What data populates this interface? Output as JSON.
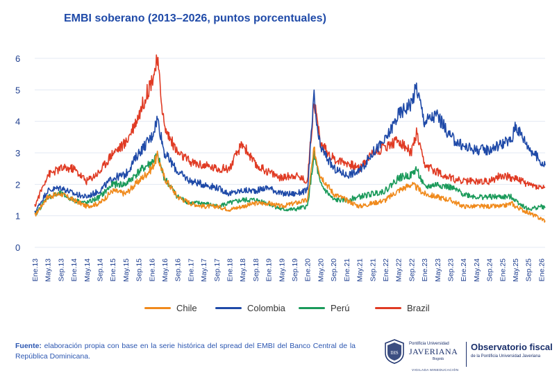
{
  "title": "EMBI soberano (2013–2026, puntos porcentuales)",
  "chart_data": {
    "type": "line",
    "title": "EMBI soberano (2013–2026, puntos porcentuales)",
    "xlabel": "",
    "ylabel": "",
    "ylim": [
      0,
      6
    ],
    "yticks": [
      0,
      1,
      2,
      3,
      4,
      5,
      6
    ],
    "grid": "horizontal",
    "legend_position": "bottom",
    "x_start": 2013.0,
    "x_end": 2026.1,
    "xtick_labels": [
      "Ene.13",
      "May.13",
      "Sep.13",
      "Ene.14",
      "May.14",
      "Sep.14",
      "Ene.15",
      "May.15",
      "Sep.15",
      "Ene.16",
      "May.16",
      "Sep.16",
      "Ene.17",
      "May.17",
      "Sep.17",
      "Ene.18",
      "May.18",
      "Sep.18",
      "Ene.19",
      "May.19",
      "Sep.19",
      "Ene.20",
      "May.20",
      "Sep.20",
      "Ene.21",
      "May.21",
      "Sep.21",
      "Ene.22",
      "May.22",
      "Sep.22",
      "Ene.23",
      "May.23",
      "Sep.23",
      "Ene.24",
      "May.24",
      "Sep.24",
      "Ene.25",
      "May.25",
      "Sep.25",
      "Ene.26"
    ],
    "x": [
      2013.0,
      2013.33,
      2013.67,
      2014.0,
      2014.33,
      2014.67,
      2015.0,
      2015.33,
      2015.67,
      2016.0,
      2016.15,
      2016.33,
      2016.67,
      2017.0,
      2017.33,
      2017.67,
      2018.0,
      2018.33,
      2018.67,
      2019.0,
      2019.33,
      2019.67,
      2020.0,
      2020.17,
      2020.25,
      2020.33,
      2020.67,
      2021.0,
      2021.33,
      2021.67,
      2022.0,
      2022.33,
      2022.67,
      2022.8,
      2023.0,
      2023.33,
      2023.67,
      2024.0,
      2024.33,
      2024.67,
      2025.0,
      2025.25,
      2025.33,
      2025.67,
      2026.0,
      2026.1
    ],
    "series": [
      {
        "name": "Chile",
        "color": "#f08a1c",
        "values": [
          1.0,
          1.6,
          1.7,
          1.5,
          1.3,
          1.4,
          1.8,
          1.7,
          2.1,
          2.5,
          2.9,
          2.2,
          1.6,
          1.4,
          1.3,
          1.3,
          1.2,
          1.3,
          1.4,
          1.4,
          1.3,
          1.4,
          1.5,
          3.1,
          2.7,
          2.3,
          1.7,
          1.5,
          1.3,
          1.4,
          1.5,
          1.8,
          2.0,
          1.9,
          1.7,
          1.6,
          1.5,
          1.3,
          1.3,
          1.3,
          1.3,
          1.4,
          1.3,
          1.1,
          0.9,
          0.85
        ]
      },
      {
        "name": "Colombia",
        "color": "#1f4aa8",
        "values": [
          1.1,
          1.8,
          1.9,
          1.7,
          1.6,
          1.8,
          2.2,
          2.3,
          3.0,
          3.5,
          4.1,
          3.0,
          2.4,
          2.1,
          2.0,
          1.9,
          1.7,
          1.8,
          1.8,
          1.9,
          1.7,
          1.7,
          1.8,
          4.8,
          3.7,
          3.2,
          2.5,
          2.3,
          2.4,
          3.0,
          3.4,
          4.2,
          4.6,
          5.1,
          4.0,
          4.2,
          3.5,
          3.2,
          3.1,
          3.1,
          3.3,
          3.4,
          3.9,
          3.2,
          2.7,
          2.6
        ]
      },
      {
        "name": "Perú",
        "color": "#1a9a5a",
        "values": [
          1.0,
          1.6,
          1.7,
          1.5,
          1.4,
          1.6,
          2.0,
          2.0,
          2.4,
          2.7,
          2.9,
          2.2,
          1.6,
          1.4,
          1.4,
          1.3,
          1.4,
          1.5,
          1.5,
          1.4,
          1.2,
          1.2,
          1.3,
          2.9,
          2.5,
          2.0,
          1.5,
          1.5,
          1.6,
          1.7,
          1.8,
          2.2,
          2.3,
          2.5,
          1.9,
          2.0,
          1.9,
          1.7,
          1.6,
          1.6,
          1.6,
          1.6,
          1.5,
          1.2,
          1.3,
          1.25
        ]
      },
      {
        "name": "Brazil",
        "color": "#e03b24",
        "values": [
          1.3,
          2.3,
          2.5,
          2.5,
          2.1,
          2.4,
          3.0,
          3.3,
          4.2,
          5.3,
          5.9,
          3.8,
          3.0,
          2.7,
          2.6,
          2.5,
          2.5,
          3.3,
          2.6,
          2.4,
          2.2,
          2.3,
          2.1,
          4.7,
          4.0,
          3.3,
          2.8,
          2.7,
          2.5,
          3.0,
          3.2,
          3.4,
          3.0,
          3.6,
          2.6,
          2.4,
          2.2,
          2.1,
          2.1,
          2.1,
          2.3,
          2.2,
          2.2,
          2.0,
          1.9,
          1.9
        ]
      }
    ]
  },
  "legend": [
    {
      "label": "Chile",
      "color": "#f08a1c"
    },
    {
      "label": "Colombia",
      "color": "#1f4aa8"
    },
    {
      "label": "Perú",
      "color": "#1a9a5a"
    },
    {
      "label": "Brazil",
      "color": "#e03b24"
    }
  ],
  "source": {
    "label": "Fuente:",
    "text": " elaboración propia con base en la serie histórica del spread del EMBI del Banco Central de la República Dominicana."
  },
  "logos": {
    "javeriana_line1": "Pontificia Universidad",
    "javeriana_line2": "JAVERIANA",
    "javeriana_line3": "Bogotá",
    "javeriana_line4": "VIGILADA MINEDUCACIÓN",
    "observatorio_line1": "Observatorio fiscal",
    "observatorio_line2": "de la Pontificia Universidad Javeriana"
  }
}
